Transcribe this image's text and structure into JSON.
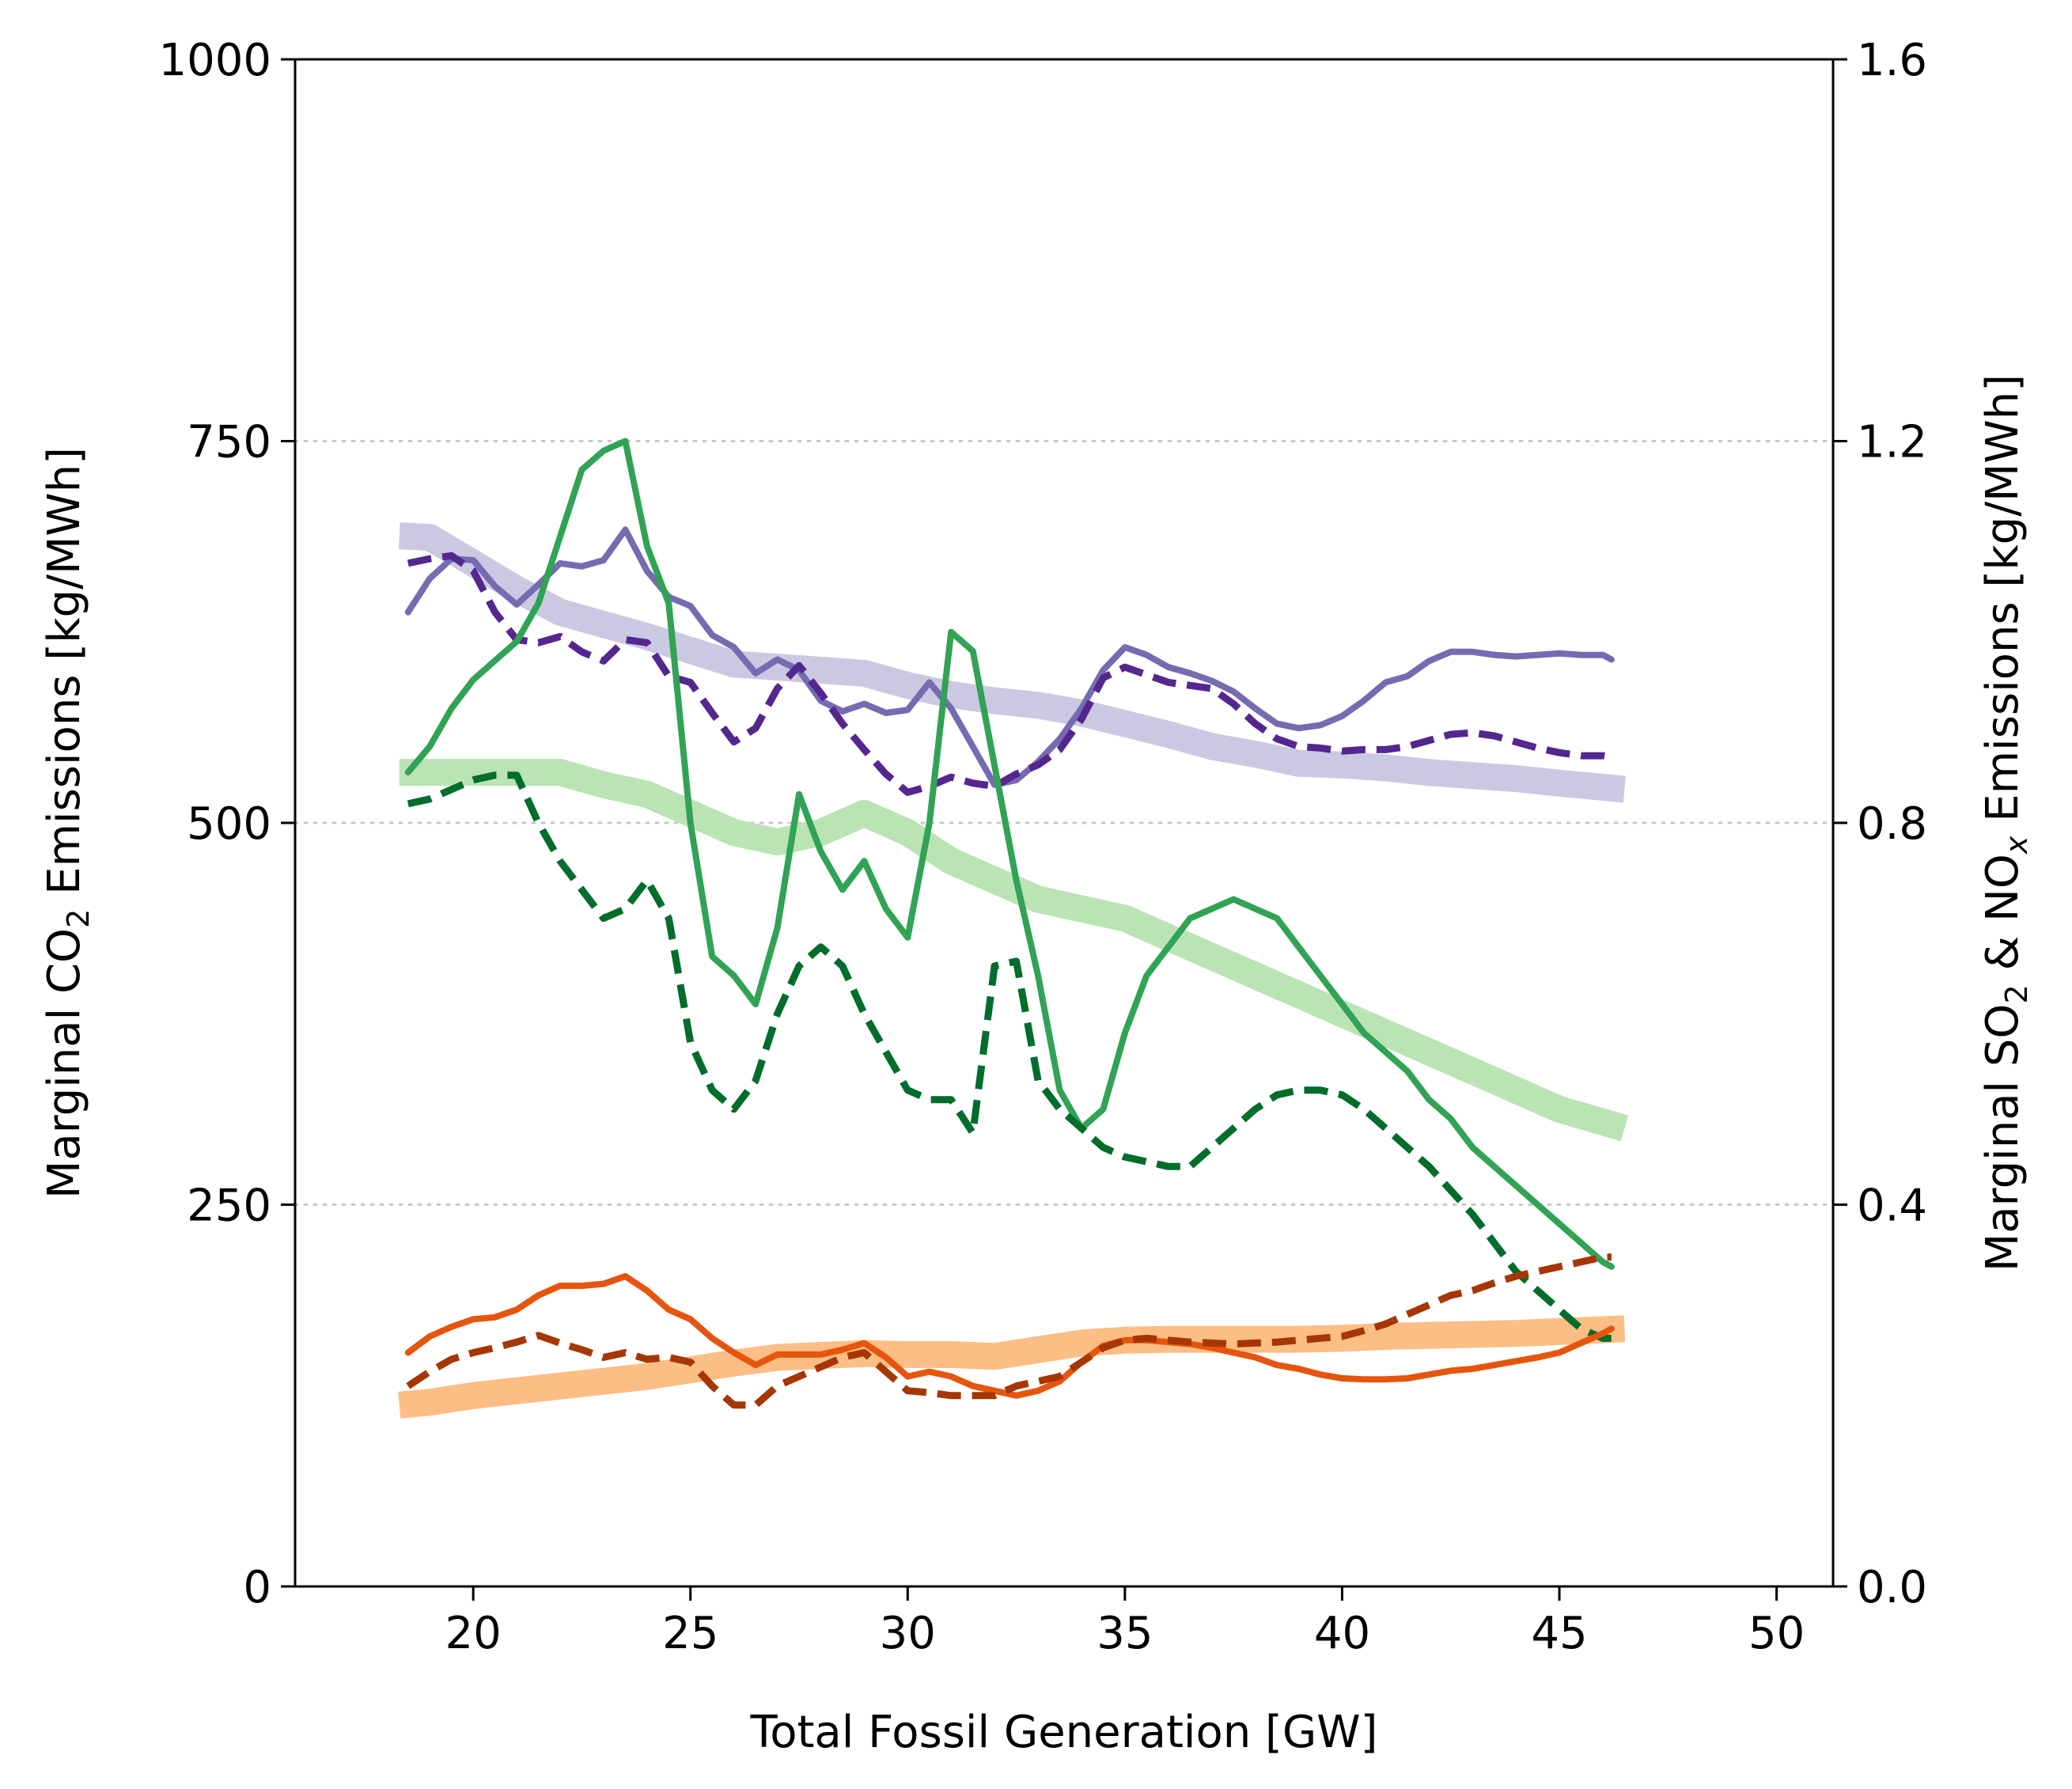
{
  "chart_data": {
    "type": "line",
    "title": "",
    "xlabel": "Total Fossil Generation [GW]",
    "ylabel_left": {
      "main": "Marginal CO",
      "sub": "2",
      "tail": " Emissions [kg/MWh]"
    },
    "ylabel_right": {
      "main": "Marginal SO",
      "sub1": "2",
      "mid": " & NO",
      "sub2": "x",
      "tail": " Emissions [kg/MWh]"
    },
    "xlim": [
      15.9,
      51.3
    ],
    "ylim_left": [
      0,
      1000
    ],
    "ylim_right": [
      0,
      1.6
    ],
    "xticks": [
      20,
      25,
      30,
      35,
      40,
      45,
      50
    ],
    "xtick_labels": [
      "20",
      "25",
      "30",
      "35",
      "40",
      "45",
      "50"
    ],
    "yticks_left": [
      0,
      250,
      500,
      750,
      1000
    ],
    "ytick_labels_left": [
      "0",
      "250",
      "500",
      "750",
      "1000"
    ],
    "yticks_right": [
      0,
      0.4,
      0.8,
      1.2,
      1.6
    ],
    "ytick_labels_right": [
      "0.0",
      "0.4",
      "0.8",
      "1.2",
      "1.6"
    ],
    "grid": {
      "axis": "y",
      "style": "dotted",
      "values": [
        250,
        500,
        750
      ]
    },
    "series": [
      {
        "axis": "left",
        "style": "thick",
        "color": "#cbc9e2",
        "x": [
          18.3,
          19,
          20,
          21,
          22,
          23,
          24,
          25,
          26,
          27,
          28,
          29,
          30,
          31,
          32,
          33,
          34,
          35,
          36,
          37,
          38,
          39,
          40,
          41,
          42,
          43,
          44,
          45,
          46.5
        ],
        "y": [
          688,
          687,
          670,
          653,
          638,
          630,
          622,
          613,
          604,
          602,
          600,
          598,
          590,
          584,
          580,
          577,
          572,
          565,
          558,
          550,
          545,
          539,
          538,
          536,
          533,
          531,
          529,
          526,
          522
        ]
      },
      {
        "axis": "left",
        "style": "solid",
        "color": "#756bb1",
        "x": [
          18.5,
          19,
          19.5,
          20,
          20.5,
          21,
          21.5,
          22,
          22.5,
          23,
          23.5,
          24,
          24.5,
          25,
          25.5,
          26,
          26.5,
          27,
          27.5,
          28,
          28.5,
          29,
          29.5,
          30,
          30.5,
          31,
          31.5,
          32,
          32.5,
          33,
          33.5,
          34,
          34.5,
          35,
          35.5,
          36,
          36.5,
          37,
          37.5,
          38,
          38.5,
          39,
          39.5,
          40,
          40.5,
          41,
          41.5,
          42,
          42.5,
          43,
          43.5,
          44,
          44.5,
          45,
          45.5,
          46,
          46.2
        ],
        "y": [
          638,
          660,
          673,
          672,
          655,
          643,
          656,
          670,
          668,
          672,
          692,
          665,
          648,
          642,
          623,
          615,
          598,
          607,
          600,
          580,
          573,
          578,
          572,
          574,
          592,
          575,
          550,
          525,
          528,
          540,
          555,
          575,
          600,
          615,
          610,
          602,
          598,
          593,
          586,
          575,
          565,
          562,
          564,
          570,
          580,
          592,
          596,
          606,
          612,
          612,
          610,
          609,
          610,
          611,
          610,
          610,
          607
        ]
      },
      {
        "axis": "left",
        "style": "dashed",
        "color": "#54278f",
        "x": [
          18.5,
          19,
          19.5,
          20,
          20.5,
          21,
          21.5,
          22,
          22.5,
          23,
          23.5,
          24,
          24.5,
          25,
          25.5,
          26,
          26.5,
          27,
          27.5,
          28,
          28.5,
          29,
          29.5,
          30,
          30.5,
          31,
          31.5,
          32,
          32.5,
          33,
          33.5,
          34,
          34.5,
          35,
          35.5,
          36,
          36.5,
          37,
          37.5,
          38,
          38.5,
          39,
          39.5,
          40,
          40.5,
          41,
          41.5,
          42,
          42.5,
          43,
          43.5,
          44,
          44.5,
          45,
          45.5,
          46,
          46.2
        ],
        "y": [
          670,
          673,
          675,
          665,
          638,
          620,
          618,
          622,
          612,
          606,
          620,
          618,
          596,
          592,
          572,
          553,
          562,
          588,
          603,
          585,
          565,
          548,
          532,
          520,
          524,
          530,
          526,
          524,
          532,
          538,
          548,
          568,
          595,
          602,
          597,
          592,
          590,
          588,
          578,
          565,
          555,
          550,
          549,
          547,
          548,
          548,
          550,
          554,
          558,
          559,
          557,
          553,
          549,
          546,
          544,
          544,
          543
        ]
      },
      {
        "axis": "right",
        "style": "thick",
        "color": "#bae4b3",
        "x": [
          18.3,
          19,
          20,
          21,
          22,
          23,
          24,
          25,
          26,
          27,
          28,
          29,
          30,
          31,
          32,
          33,
          34,
          35,
          36,
          37,
          38,
          39,
          40,
          41,
          42,
          43,
          44,
          45,
          46.5
        ],
        "y": [
          0.853,
          0.853,
          0.853,
          0.853,
          0.853,
          0.84,
          0.83,
          0.81,
          0.79,
          0.78,
          0.79,
          0.81,
          0.79,
          0.76,
          0.74,
          0.72,
          0.71,
          0.7,
          0.68,
          0.66,
          0.64,
          0.62,
          0.6,
          0.58,
          0.56,
          0.54,
          0.52,
          0.5,
          0.48
        ]
      },
      {
        "axis": "right",
        "style": "solid",
        "color": "#31a354",
        "x": [
          18.5,
          19,
          19.5,
          20,
          20.5,
          21,
          21.5,
          22,
          22.5,
          23,
          23.5,
          24,
          24.5,
          25,
          25.5,
          26,
          26.5,
          27,
          27.5,
          28,
          28.5,
          29,
          29.5,
          30,
          30.5,
          31,
          31.5,
          32,
          32.5,
          33,
          33.5,
          34,
          34.5,
          35,
          35.5,
          36,
          36.5,
          37,
          37.5,
          38,
          38.5,
          39,
          39.5,
          40,
          40.5,
          41,
          41.5,
          42,
          42.5,
          43,
          43.5,
          44,
          44.5,
          45,
          45.5,
          46,
          46.2
        ],
        "y": [
          0.853,
          0.88,
          0.92,
          0.95,
          0.97,
          0.99,
          1.03,
          1.1,
          1.17,
          1.19,
          1.2,
          1.09,
          1.03,
          0.8,
          0.66,
          0.64,
          0.61,
          0.69,
          0.83,
          0.77,
          0.73,
          0.76,
          0.71,
          0.68,
          0.8,
          1.0,
          0.98,
          0.86,
          0.74,
          0.64,
          0.52,
          0.48,
          0.5,
          0.58,
          0.64,
          0.67,
          0.7,
          0.71,
          0.72,
          0.71,
          0.7,
          0.67,
          0.64,
          0.61,
          0.58,
          0.56,
          0.54,
          0.51,
          0.49,
          0.46,
          0.44,
          0.42,
          0.4,
          0.38,
          0.36,
          0.34,
          0.335
        ]
      },
      {
        "axis": "right",
        "style": "dashed",
        "color": "#006d2c",
        "x": [
          18.5,
          19,
          19.5,
          20,
          20.5,
          21,
          21.5,
          22,
          22.5,
          23,
          23.5,
          24,
          24.5,
          25,
          25.5,
          26,
          26.5,
          27,
          27.5,
          28,
          28.5,
          29,
          29.5,
          30,
          30.5,
          31,
          31.5,
          32,
          32.5,
          33,
          33.5,
          34,
          34.5,
          35,
          35.5,
          36,
          36.5,
          37,
          37.5,
          38,
          38.5,
          39,
          39.5,
          40,
          40.5,
          41,
          41.5,
          42,
          42.5,
          43,
          43.5,
          44,
          44.5,
          45,
          45.5,
          46,
          46.2
        ],
        "y": [
          0.82,
          0.825,
          0.835,
          0.845,
          0.85,
          0.85,
          0.8,
          0.76,
          0.73,
          0.7,
          0.71,
          0.74,
          0.7,
          0.57,
          0.52,
          0.5,
          0.53,
          0.6,
          0.65,
          0.67,
          0.65,
          0.6,
          0.56,
          0.52,
          0.51,
          0.51,
          0.475,
          0.65,
          0.655,
          0.53,
          0.5,
          0.48,
          0.46,
          0.45,
          0.445,
          0.44,
          0.44,
          0.46,
          0.48,
          0.5,
          0.515,
          0.52,
          0.52,
          0.515,
          0.5,
          0.48,
          0.46,
          0.44,
          0.415,
          0.39,
          0.36,
          0.33,
          0.31,
          0.29,
          0.27,
          0.26,
          0.26
        ]
      },
      {
        "axis": "right",
        "style": "thick",
        "color": "#fdbe85",
        "x": [
          18.3,
          19,
          20,
          21,
          22,
          23,
          24,
          25,
          26,
          27,
          28,
          29,
          30,
          31,
          32,
          33,
          34,
          35,
          36,
          37,
          38,
          39,
          40,
          41,
          42,
          43,
          44,
          45,
          46.5
        ],
        "y": [
          0.19,
          0.193,
          0.2,
          0.205,
          0.21,
          0.215,
          0.22,
          0.227,
          0.234,
          0.24,
          0.242,
          0.244,
          0.243,
          0.243,
          0.241,
          0.248,
          0.255,
          0.258,
          0.259,
          0.259,
          0.259,
          0.259,
          0.26,
          0.262,
          0.263,
          0.264,
          0.265,
          0.267,
          0.27
        ]
      },
      {
        "axis": "right",
        "style": "solid",
        "color": "#e6550d",
        "x": [
          18.5,
          19,
          19.5,
          20,
          20.5,
          21,
          21.5,
          22,
          22.5,
          23,
          23.5,
          24,
          24.5,
          25,
          25.5,
          26,
          26.5,
          27,
          27.5,
          28,
          28.5,
          29,
          29.5,
          30,
          30.5,
          31,
          31.5,
          32,
          32.5,
          33,
          33.5,
          34,
          34.5,
          35,
          35.5,
          36,
          36.5,
          37,
          37.5,
          38,
          38.5,
          39,
          39.5,
          40,
          40.5,
          41,
          41.5,
          42,
          42.5,
          43,
          43.5,
          44,
          44.5,
          45,
          45.5,
          46,
          46.2
        ],
        "y": [
          0.245,
          0.262,
          0.272,
          0.28,
          0.282,
          0.29,
          0.305,
          0.315,
          0.315,
          0.317,
          0.325,
          0.31,
          0.29,
          0.28,
          0.26,
          0.245,
          0.232,
          0.243,
          0.243,
          0.243,
          0.248,
          0.255,
          0.24,
          0.22,
          0.225,
          0.22,
          0.21,
          0.205,
          0.2,
          0.205,
          0.215,
          0.235,
          0.252,
          0.258,
          0.258,
          0.256,
          0.254,
          0.25,
          0.245,
          0.24,
          0.232,
          0.228,
          0.222,
          0.218,
          0.217,
          0.217,
          0.218,
          0.222,
          0.226,
          0.228,
          0.232,
          0.236,
          0.24,
          0.245,
          0.255,
          0.265,
          0.27
        ]
      },
      {
        "axis": "right",
        "style": "dashed",
        "color": "#a63603",
        "x": [
          18.5,
          19,
          19.5,
          20,
          20.5,
          21,
          21.5,
          22,
          22.5,
          23,
          23.5,
          24,
          24.5,
          25,
          25.5,
          26,
          26.5,
          27,
          27.5,
          28,
          28.5,
          29,
          29.5,
          30,
          30.5,
          31,
          31.5,
          32,
          32.5,
          33,
          33.5,
          34,
          34.5,
          35,
          35.5,
          36,
          36.5,
          37,
          37.5,
          38,
          38.5,
          39,
          39.5,
          40,
          40.5,
          41,
          41.5,
          42,
          42.5,
          43,
          43.5,
          44,
          44.5,
          45,
          45.5,
          46,
          46.2
        ],
        "y": [
          0.21,
          0.225,
          0.238,
          0.245,
          0.25,
          0.256,
          0.263,
          0.255,
          0.248,
          0.24,
          0.245,
          0.238,
          0.24,
          0.235,
          0.21,
          0.19,
          0.19,
          0.21,
          0.22,
          0.23,
          0.24,
          0.245,
          0.225,
          0.205,
          0.203,
          0.2,
          0.2,
          0.2,
          0.21,
          0.215,
          0.22,
          0.235,
          0.25,
          0.258,
          0.26,
          0.258,
          0.256,
          0.255,
          0.254,
          0.255,
          0.256,
          0.258,
          0.26,
          0.262,
          0.268,
          0.275,
          0.285,
          0.295,
          0.305,
          0.31,
          0.318,
          0.325,
          0.33,
          0.335,
          0.34,
          0.345,
          0.345
        ]
      }
    ]
  }
}
